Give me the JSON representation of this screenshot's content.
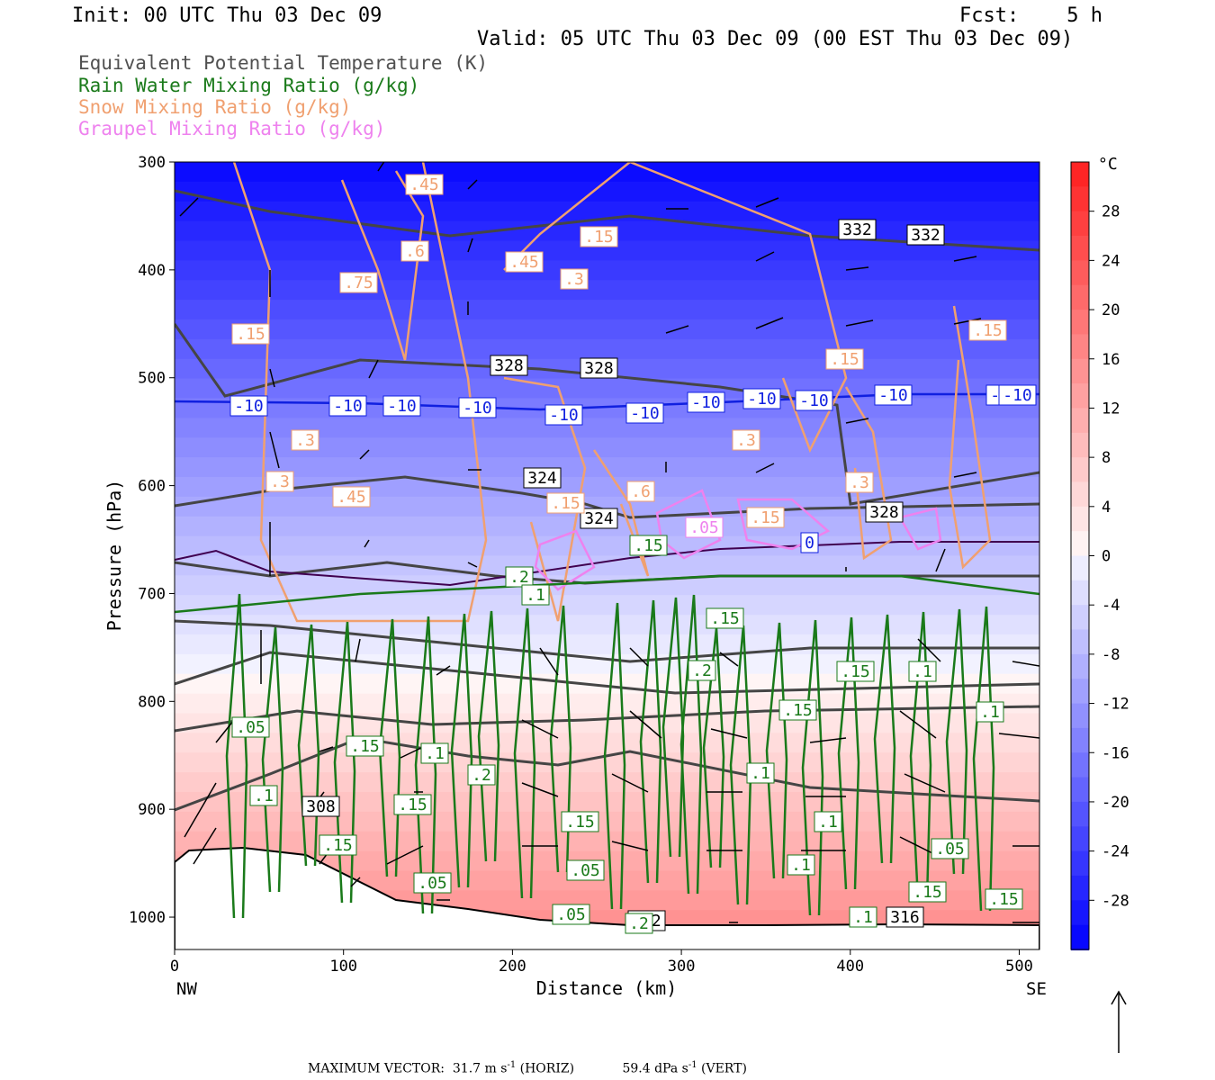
{
  "header": {
    "init": "Init: 00 UTC Thu 03 Dec 09",
    "fcst": "Fcst:    5 h",
    "valid": "Valid: 05 UTC Thu 03 Dec 09 (00 EST Thu 03 Dec 09)"
  },
  "legend": [
    {
      "label": "Equivalent Potential Temperature (K)",
      "color": "#505050"
    },
    {
      "label": "Rain Water Mixing Ratio (g/kg)",
      "color": "#1a7a1a"
    },
    {
      "label": "Snow Mixing Ratio (g/kg)",
      "color": "#f0a070"
    },
    {
      "label": "Graupel Mixing Ratio (g/kg)",
      "color": "#ee82ee"
    }
  ],
  "chart_data": {
    "type": "cross-section",
    "xlabel": "Distance (km)",
    "ylabel": "Pressure (hPa)",
    "xlim": [
      0,
      512
    ],
    "ylim": [
      1030,
      300
    ],
    "x_ticks": [
      "0",
      "100",
      "200",
      "300",
      "400",
      "500"
    ],
    "y_ticks": [
      "300",
      "400",
      "500",
      "600",
      "700",
      "800",
      "900",
      "1000"
    ],
    "x_end_labels": {
      "left": "NW",
      "right": "SE"
    },
    "colorbar": {
      "unit": "°C",
      "tick_labels": [
        "28",
        "24",
        "20",
        "16",
        "12",
        "8",
        "4",
        "0",
        "-4",
        "-8",
        "-12",
        "-16",
        "-20",
        "-24",
        "-28"
      ],
      "min": -32,
      "max": 32
    },
    "isotherm_labels": [
      "-10",
      "-10",
      "-10",
      "-10",
      "-10",
      "-10",
      "-10",
      "-10",
      "-10",
      "-10",
      "-10",
      "-10",
      "-10",
      "0"
    ],
    "theta_e_labels": [
      "332",
      "332",
      "328",
      "328",
      "324",
      "324",
      "328",
      "308",
      "312",
      "316"
    ],
    "rain_labels": [
      ".05",
      ".1",
      ".15",
      ".2",
      ".15",
      ".1",
      ".15",
      ".1",
      ".15",
      ".1",
      ".2",
      ".15",
      ".15",
      ".05",
      ".1",
      ".1",
      ".1",
      ".05",
      ".15",
      ".2",
      ".15",
      ".15",
      ".1",
      ".05",
      ".05",
      ".1",
      ".15",
      ".2"
    ],
    "snow_labels": [
      ".45",
      ".6",
      ".75",
      ".15",
      ".45",
      ".3",
      ".15",
      ".15",
      ".15",
      ".3",
      ".3",
      ".45",
      ".6",
      ".3",
      ".3",
      ".15",
      ".15"
    ],
    "graupel_labels": [
      ".05"
    ]
  },
  "footer": {
    "max_vector_label": "MAXIMUM VECTOR:",
    "horiz": "31.7 m s",
    "horiz_exp": "-1",
    "horiz_unit": " (HORIZ)",
    "vert": "59.4 dPa s",
    "vert_exp": "-1",
    "vert_unit": " (VERT)"
  }
}
